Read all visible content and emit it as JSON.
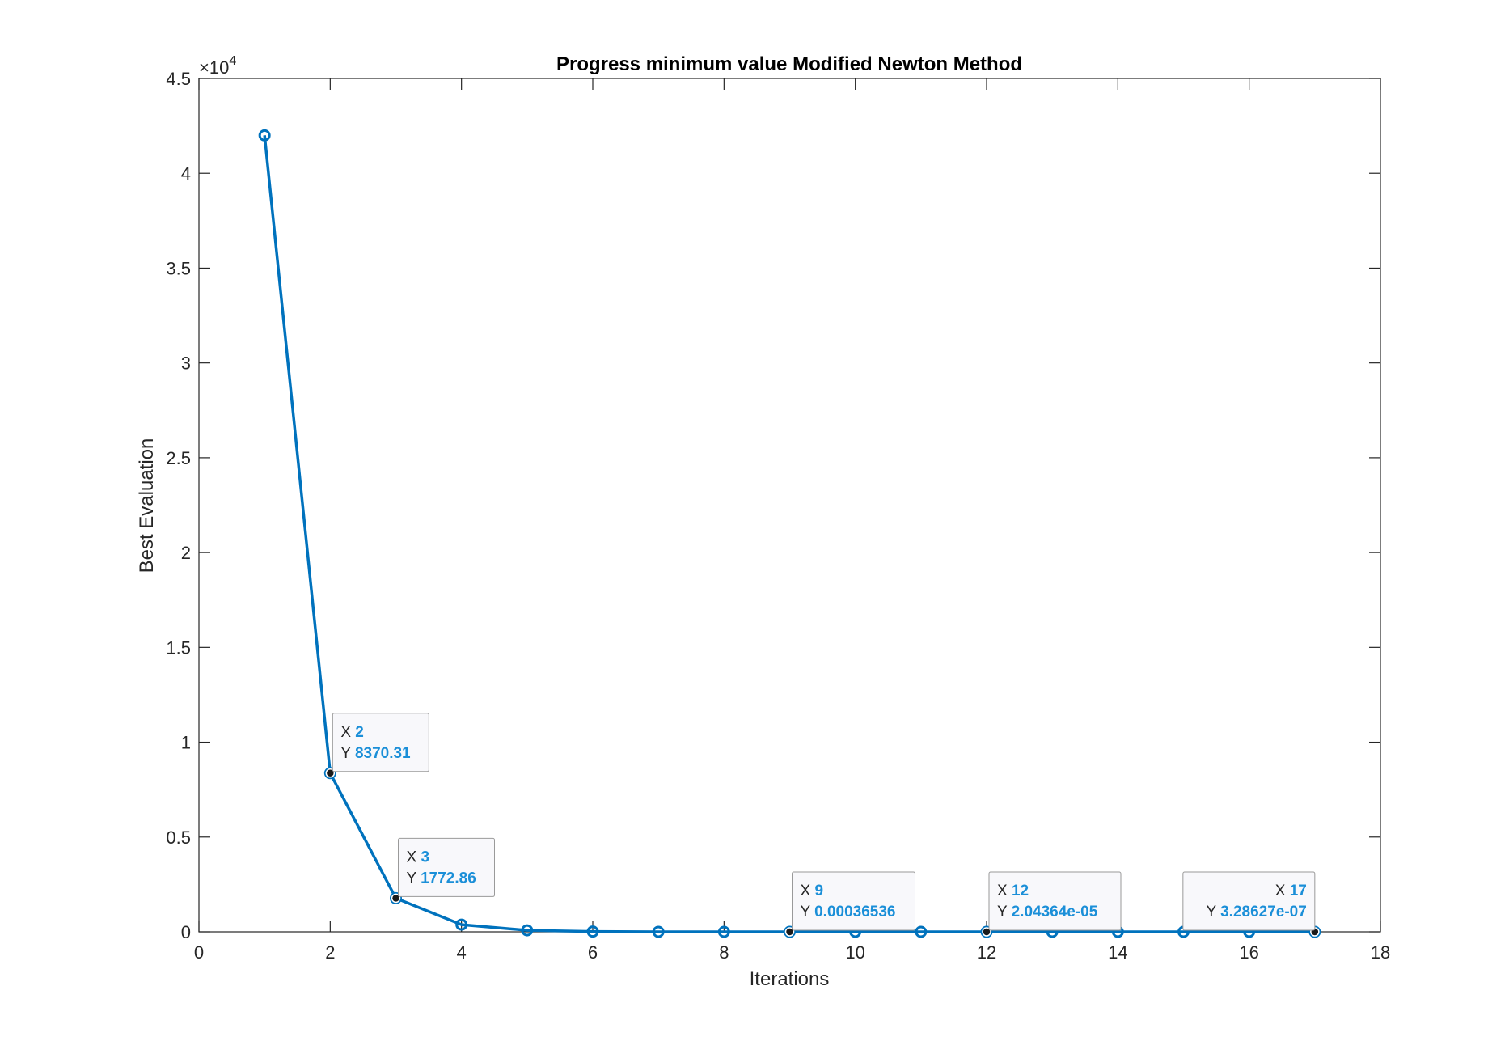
{
  "colors": {
    "series": "#0072BD",
    "tip_value": "#1b8fd8",
    "axis": "#262626"
  },
  "chart_data": {
    "type": "line",
    "title": "Progress minimum value Modified Newton Method",
    "xlabel": "Iterations",
    "ylabel": "Best Evaluation",
    "y_exponent_base": "×10",
    "y_exponent_power": "4",
    "xlim": [
      0,
      18
    ],
    "ylim": [
      0,
      45000
    ],
    "xticks": [
      0,
      2,
      4,
      6,
      8,
      10,
      12,
      14,
      16,
      18
    ],
    "xtick_labels": [
      "0",
      "2",
      "4",
      "6",
      "8",
      "10",
      "12",
      "14",
      "16",
      "18"
    ],
    "yticks": [
      0,
      5000,
      10000,
      15000,
      20000,
      25000,
      30000,
      35000,
      40000,
      45000
    ],
    "ytick_labels": [
      "0",
      "0.5",
      "1",
      "1.5",
      "2",
      "2.5",
      "3",
      "3.5",
      "4",
      "4.5"
    ],
    "grid": false,
    "marker": "circle",
    "x": [
      1,
      2,
      3,
      4,
      5,
      6,
      7,
      8,
      9,
      10,
      11,
      12,
      13,
      14,
      15,
      16,
      17
    ],
    "y": [
      42000,
      8370.31,
      1772.86,
      380,
      80,
      15,
      2,
      0.3,
      0.00036536,
      0.0002,
      0.0001,
      2.04364e-05,
      1e-05,
      5e-06,
      2e-06,
      1e-06,
      3.28627e-07
    ],
    "datatips": [
      {
        "x": 2,
        "y": 8370.31,
        "x_key": "X",
        "y_key": "Y",
        "x_text": "2",
        "y_text": "8370.31",
        "align": "left"
      },
      {
        "x": 3,
        "y": 1772.86,
        "x_key": "X",
        "y_key": "Y",
        "x_text": "3",
        "y_text": "1772.86",
        "align": "left"
      },
      {
        "x": 9,
        "y": 0.00036536,
        "x_key": "X",
        "y_key": "Y",
        "x_text": "9",
        "y_text": "0.00036536",
        "align": "left"
      },
      {
        "x": 12,
        "y": 2.04364e-05,
        "x_key": "X",
        "y_key": "Y",
        "x_text": "12",
        "y_text": "2.04364e-05",
        "align": "left"
      },
      {
        "x": 17,
        "y": 3.28627e-07,
        "x_key": "X",
        "y_key": "Y",
        "x_text": "17",
        "y_text": "3.28627e-07",
        "align": "right"
      }
    ]
  }
}
